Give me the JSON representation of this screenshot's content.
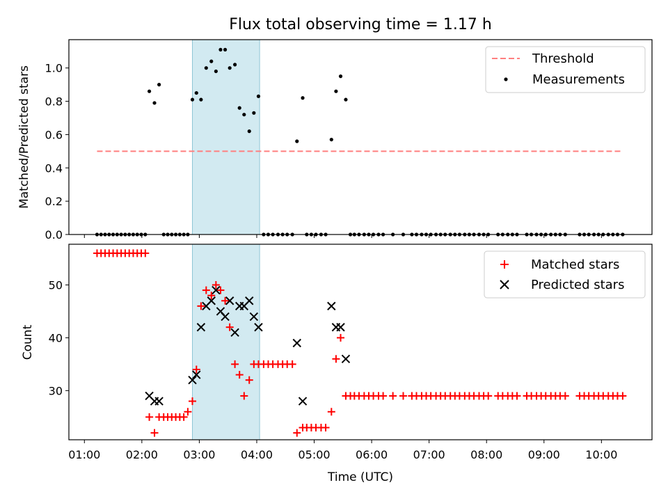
{
  "chart_data": [
    {
      "type": "scatter",
      "title": "Flux total observing time = 1.17 h",
      "xlabel": "",
      "ylabel": "Matched/Predicted stars",
      "ylim": [
        0,
        1.17
      ],
      "yticks": [
        "0.0",
        "0.2",
        "0.4",
        "0.6",
        "0.8",
        "1.0"
      ],
      "ytick_values": [
        0,
        0.2,
        0.4,
        0.6,
        0.8,
        1.0
      ],
      "x_range_hours": [
        0.73,
        10.88
      ],
      "shaded_span_hours": [
        2.88,
        4.05
      ],
      "shaded_color": "#add8e6",
      "threshold": {
        "name": "Threshold",
        "value": 0.5,
        "x_start": 1.22,
        "x_end": 10.35,
        "color": "#ff7f7f"
      },
      "legend_position": "upper right",
      "series": [
        {
          "name": "Measurements",
          "color": "#000000",
          "x": [
            1.22,
            1.29,
            1.36,
            1.43,
            1.5,
            1.57,
            1.64,
            1.71,
            1.78,
            1.85,
            1.92,
            1.99,
            2.06,
            2.13,
            2.22,
            2.3,
            2.38,
            2.45,
            2.52,
            2.59,
            2.66,
            2.73,
            2.8,
            2.88,
            2.95,
            3.03,
            3.12,
            3.21,
            3.29,
            3.37,
            3.45,
            3.53,
            3.62,
            3.7,
            3.78,
            3.87,
            3.95,
            4.03,
            4.12,
            4.2,
            4.28,
            4.37,
            4.45,
            4.53,
            4.62,
            4.7,
            4.8,
            4.87,
            4.95,
            5.03,
            5.12,
            5.2,
            5.3,
            5.38,
            5.46,
            5.55,
            5.63,
            5.7,
            5.78,
            5.87,
            5.95,
            6.03,
            6.12,
            6.2,
            6.37,
            6.55,
            6.7,
            6.78,
            6.87,
            6.95,
            7.03,
            7.12,
            7.2,
            7.28,
            7.37,
            7.45,
            7.53,
            7.62,
            7.7,
            7.78,
            7.87,
            7.95,
            8.03,
            8.2,
            8.28,
            8.37,
            8.45,
            8.53,
            8.7,
            8.78,
            8.87,
            8.95,
            9.03,
            9.12,
            9.2,
            9.28,
            9.37,
            9.62,
            9.7,
            9.78,
            9.87,
            9.95,
            10.03,
            10.12,
            10.2,
            10.28,
            10.37
          ],
          "y": [
            0,
            0,
            0,
            0,
            0,
            0,
            0,
            0,
            0,
            0,
            0,
            0,
            0,
            0.86,
            0.79,
            0.9,
            0,
            0,
            0,
            0,
            0,
            0,
            0,
            0.81,
            0.85,
            0.81,
            1.0,
            1.04,
            0.98,
            1.11,
            1.11,
            1.0,
            1.02,
            0.76,
            0.72,
            0.62,
            0.73,
            0.83,
            0,
            0,
            0,
            0,
            0,
            0,
            0,
            0.56,
            0.82,
            0,
            0,
            0,
            0,
            0,
            0.57,
            0.86,
            0.95,
            0.81,
            0,
            0,
            0,
            0,
            0,
            0,
            0,
            0,
            0,
            0,
            0,
            0,
            0,
            0,
            0,
            0,
            0,
            0,
            0,
            0,
            0,
            0,
            0,
            0,
            0,
            0,
            0,
            0,
            0,
            0,
            0,
            0,
            0,
            0,
            0,
            0,
            0,
            0,
            0,
            0,
            0,
            0,
            0,
            0,
            0,
            0,
            0,
            0,
            0,
            0,
            0
          ]
        }
      ]
    },
    {
      "type": "scatter",
      "xlabel": "Time (UTC)",
      "ylabel": "Count",
      "ylim": [
        20.7,
        57.7
      ],
      "yticks": [
        "30",
        "40",
        "50"
      ],
      "ytick_values": [
        30,
        40,
        50
      ],
      "xticks": [
        "01:00",
        "02:00",
        "03:00",
        "04:00",
        "05:00",
        "06:00",
        "07:00",
        "08:00",
        "09:00",
        "10:00"
      ],
      "xtick_values": [
        1,
        2,
        3,
        4,
        5,
        6,
        7,
        8,
        9,
        10
      ],
      "x_range_hours": [
        0.73,
        10.88
      ],
      "shaded_span_hours": [
        2.88,
        4.05
      ],
      "shaded_color": "#add8e6",
      "legend_position": "upper right",
      "series": [
        {
          "name": "Matched stars",
          "marker": "plus",
          "color": "#ff0000",
          "x": [
            1.22,
            1.29,
            1.36,
            1.43,
            1.5,
            1.57,
            1.64,
            1.71,
            1.78,
            1.85,
            1.92,
            1.99,
            2.06,
            2.13,
            2.22,
            2.3,
            2.38,
            2.45,
            2.52,
            2.59,
            2.66,
            2.73,
            2.8,
            2.88,
            2.95,
            3.03,
            3.12,
            3.21,
            3.29,
            3.37,
            3.45,
            3.53,
            3.62,
            3.7,
            3.78,
            3.87,
            3.95,
            4.03,
            4.12,
            4.2,
            4.28,
            4.37,
            4.45,
            4.53,
            4.62,
            4.7,
            4.8,
            4.87,
            4.95,
            5.03,
            5.12,
            5.2,
            5.3,
            5.38,
            5.46,
            5.55,
            5.63,
            5.7,
            5.78,
            5.87,
            5.95,
            6.03,
            6.12,
            6.2,
            6.37,
            6.55,
            6.7,
            6.78,
            6.87,
            6.95,
            7.03,
            7.12,
            7.2,
            7.28,
            7.37,
            7.45,
            7.53,
            7.62,
            7.7,
            7.78,
            7.87,
            7.95,
            8.03,
            8.2,
            8.28,
            8.37,
            8.45,
            8.53,
            8.7,
            8.78,
            8.87,
            8.95,
            9.03,
            9.12,
            9.2,
            9.28,
            9.37,
            9.62,
            9.7,
            9.78,
            9.87,
            9.95,
            10.03,
            10.12,
            10.2,
            10.28,
            10.37
          ],
          "y": [
            56,
            56,
            56,
            56,
            56,
            56,
            56,
            56,
            56,
            56,
            56,
            56,
            56,
            25,
            22,
            25,
            25,
            25,
            25,
            25,
            25,
            25,
            26,
            28,
            34,
            46,
            49,
            48,
            50,
            49,
            47,
            42,
            35,
            33,
            29,
            32,
            35,
            35,
            35,
            35,
            35,
            35,
            35,
            35,
            35,
            22,
            23,
            23,
            23,
            23,
            23,
            23,
            26,
            36,
            40,
            29,
            29,
            29,
            29,
            29,
            29,
            29,
            29,
            29,
            29,
            29,
            29,
            29,
            29,
            29,
            29,
            29,
            29,
            29,
            29,
            29,
            29,
            29,
            29,
            29,
            29,
            29,
            29,
            29,
            29,
            29,
            29,
            29,
            29,
            29,
            29,
            29,
            29,
            29,
            29,
            29,
            29,
            29,
            29,
            29,
            29,
            29,
            29,
            29,
            29,
            29,
            29
          ]
        },
        {
          "name": "Predicted stars",
          "marker": "x",
          "color": "#000000",
          "x": [
            2.13,
            2.22,
            2.3,
            2.88,
            2.95,
            3.03,
            3.12,
            3.21,
            3.29,
            3.37,
            3.45,
            3.53,
            3.62,
            3.7,
            3.78,
            3.87,
            3.95,
            4.03,
            4.7,
            4.8,
            5.3,
            5.38,
            5.46,
            5.55
          ],
          "y": [
            29,
            28,
            28,
            32,
            33,
            42,
            46,
            47,
            49,
            45,
            44,
            47,
            41,
            46,
            46,
            47,
            44,
            42,
            39,
            28,
            46,
            42,
            42,
            36
          ]
        }
      ]
    }
  ]
}
